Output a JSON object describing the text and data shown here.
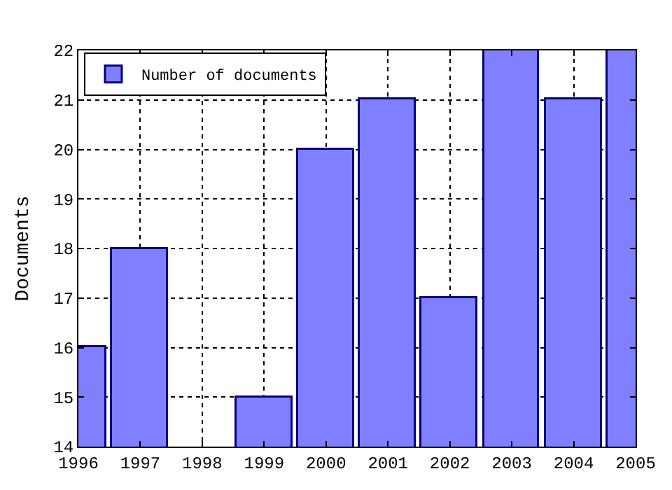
{
  "chart_data": {
    "type": "bar",
    "ylabel": "Documents",
    "x": [
      1996,
      1997,
      1998,
      1999,
      2000,
      2001,
      2002,
      2003,
      2004,
      2005
    ],
    "series": [
      {
        "name": "Number of documents",
        "color": "#8080ff",
        "values": [
          16,
          18,
          null,
          15,
          20,
          21,
          17,
          22,
          21,
          22
        ]
      }
    ],
    "xlim": [
      1996,
      2005
    ],
    "xticks": [
      1996,
      1997,
      1998,
      1999,
      2000,
      2001,
      2002,
      2003,
      2004,
      2005
    ],
    "ylim": [
      14,
      22
    ],
    "yticks": [
      14,
      15,
      16,
      17,
      18,
      19,
      20,
      21,
      22
    ],
    "grid": true,
    "legend": "top left"
  }
}
